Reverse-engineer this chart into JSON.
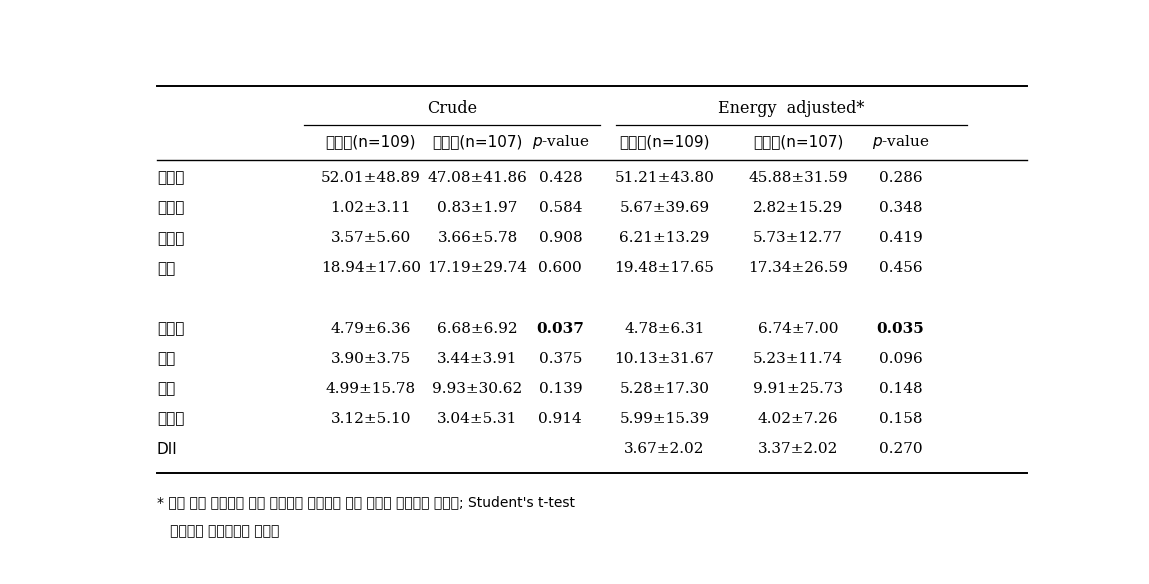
{
  "title_crude": "Crude",
  "title_energy": "Energy  adjusted*",
  "col_headers": [
    "환자군(n=109)",
    "대조군(n=107)",
    "p-value",
    "환자군(n=109)",
    "대조군(n=107)",
    "p-value"
  ],
  "rows": [
    {
      "food": "적색육",
      "c1": "52.01±48.89",
      "c2": "47.08±41.86",
      "c3": "0.428",
      "e1": "51.21±43.80",
      "e2": "45.88±31.59",
      "e3": "0.286",
      "bold_p": false
    },
    {
      "food": "가공육",
      "c1": "1.02±3.11",
      "c2": "0.83±1.97",
      "c3": "0.584",
      "e1": "5.67±39.69",
      "e2": "2.82±15.29",
      "e3": "0.348",
      "bold_p": false
    },
    {
      "food": "가금류",
      "c1": "3.57±5.60",
      "c2": "3.66±5.78",
      "c3": "0.908",
      "e1": "6.21±13.29",
      "e2": "5.73±12.77",
      "e3": "0.419",
      "bold_p": false
    },
    {
      "food": "생선",
      "c1": "18.94±17.60",
      "c2": "17.19±29.74",
      "c3": "0.600",
      "e1": "19.48±17.65",
      "e2": "17.34±26.59",
      "e3": "0.456",
      "bold_p": false
    },
    {
      "food": "",
      "c1": "",
      "c2": "",
      "c3": "",
      "e1": "",
      "e2": "",
      "e3": "",
      "bold_p": false
    },
    {
      "food": "전곱류",
      "c1": "4.79±6.36",
      "c2": "6.68±6.92",
      "c3": "0.037",
      "e1": "4.78±6.31",
      "e2": "6.74±7.00",
      "e3": "0.035",
      "bold_p": true
    },
    {
      "food": "커피",
      "c1": "3.90±3.75",
      "c2": "3.44±3.91",
      "c3": "0.375",
      "e1": "10.13±31.67",
      "e2": "5.23±11.74",
      "e3": "0.096",
      "bold_p": false
    },
    {
      "food": "녹차",
      "c1": "4.99±15.78",
      "c2": "9.93±30.62",
      "c3": "0.139",
      "e1": "5.28±17.30",
      "e2": "9.91±25.73",
      "e3": "0.148",
      "bold_p": false
    },
    {
      "food": "견과류",
      "c1": "3.12±5.10",
      "c2": "3.04±5.31",
      "c3": "0.914",
      "e1": "5.99±15.39",
      "e2": "4.02±7.26",
      "e3": "0.158",
      "bold_p": false
    },
    {
      "food": "DII",
      "c1": "",
      "c2": "",
      "c3": "",
      "e1": "3.67±2.02",
      "e2": "3.37±2.02",
      "e3": "0.270",
      "bold_p": false
    }
  ],
  "footnote_line1": "* 모든 식품 섭취량은 평균 에너지를 보정하는 잔차 방법을 이용하여 계산함; Student's t-test",
  "footnote_line2": "   이용하여 유의확률를 계산함"
}
